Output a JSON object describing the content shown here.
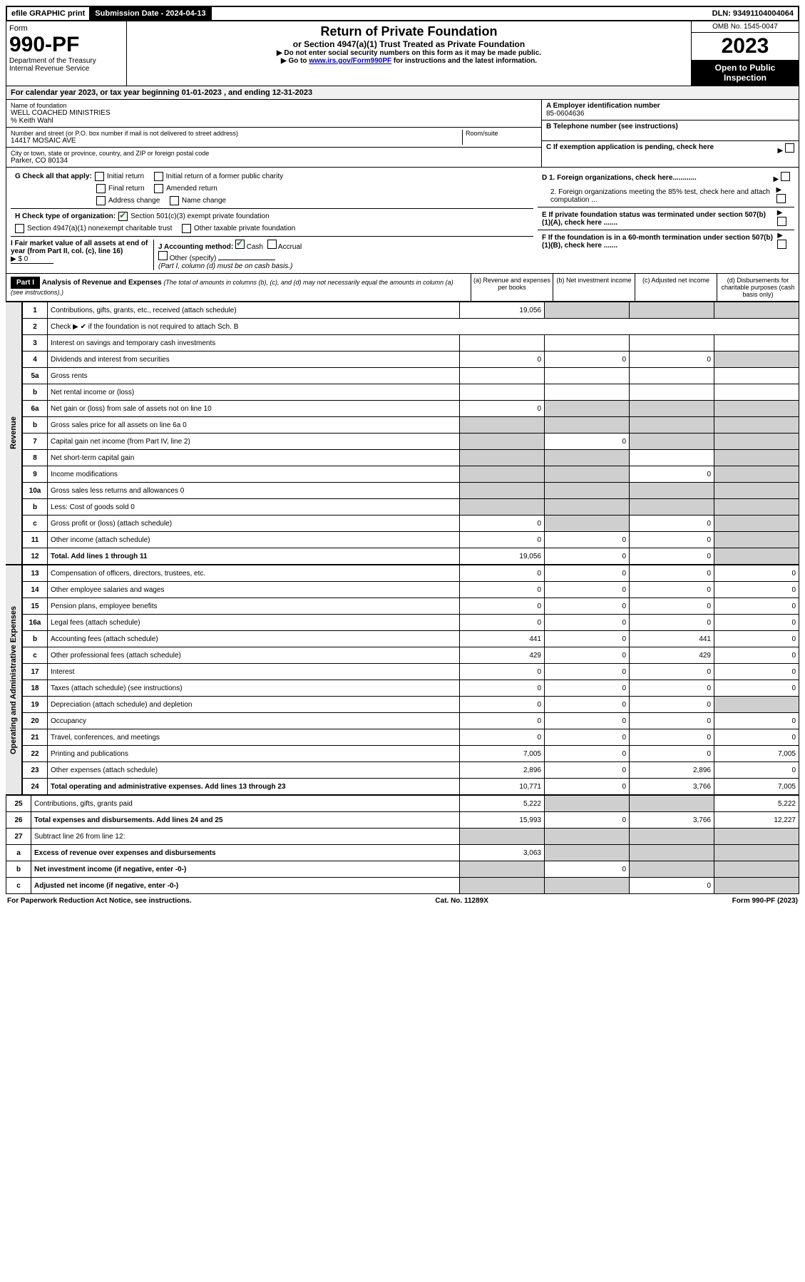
{
  "colors": {
    "black": "#000000",
    "white": "#ffffff",
    "shade": "#cfcfcf",
    "headerShade": "#f0f0f0",
    "link": "#0000cc",
    "check": "#2a7a2a"
  },
  "top": {
    "efile": "efile GRAPHIC print",
    "submission_label": "Submission Date - 2024-04-13",
    "dln": "DLN: 93491104004064"
  },
  "header": {
    "form_word": "Form",
    "form_number": "990-PF",
    "dept": "Department of the Treasury",
    "irs": "Internal Revenue Service",
    "title": "Return of Private Foundation",
    "subtitle": "or Section 4947(a)(1) Trust Treated as Private Foundation",
    "instr1": "▶ Do not enter social security numbers on this form as it may be made public.",
    "instr2_pre": "▶ Go to ",
    "instr2_link": "www.irs.gov/Form990PF",
    "instr2_post": " for instructions and the latest information.",
    "omb": "OMB No. 1545-0047",
    "year": "2023",
    "open": "Open to Public Inspection"
  },
  "calyear": "For calendar year 2023, or tax year beginning 01-01-2023 , and ending 12-31-2023",
  "org": {
    "name_label": "Name of foundation",
    "name": "WELL COACHED MINISTRIES",
    "care_of": "% Keith Wahl",
    "street_label": "Number and street (or P.O. box number if mail is not delivered to street address)",
    "street": "14417 MOSAIC AVE",
    "room_label": "Room/suite",
    "city_label": "City or town, state or province, country, and ZIP or foreign postal code",
    "city": "Parker, CO  80134"
  },
  "right_info": {
    "A_label": "A Employer identification number",
    "A_val": "85-0604636",
    "B_label": "B Telephone number (see instructions)",
    "C_label": "C If exemption application is pending, check here",
    "D1": "D 1. Foreign organizations, check here............",
    "D2": "2. Foreign organizations meeting the 85% test, check here and attach computation ...",
    "E": "E  If private foundation status was terminated under section 507(b)(1)(A), check here .......",
    "F": "F  If the foundation is in a 60-month termination under section 507(b)(1)(B), check here .......",
    "G_label": "G Check all that apply:",
    "G_opts": [
      "Initial return",
      "Initial return of a former public charity",
      "Final return",
      "Amended return",
      "Address change",
      "Name change"
    ],
    "H_label": "H Check type of organization:",
    "H_1": "Section 501(c)(3) exempt private foundation",
    "H_2": "Section 4947(a)(1) nonexempt charitable trust",
    "H_3": "Other taxable private foundation",
    "I_label": "I Fair market value of all assets at end of year (from Part II, col. (c), line 16)",
    "I_val": "▶ $  0",
    "J_label": "J Accounting method:",
    "J_cash": "Cash",
    "J_accrual": "Accrual",
    "J_other": "Other (specify)",
    "J_note": "(Part I, column (d) must be on cash basis.)"
  },
  "part1": {
    "tab": "Part I",
    "title": "Analysis of Revenue and Expenses",
    "note": "(The total of amounts in columns (b), (c), and (d) may not necessarily equal the amounts in column (a) (see instructions).)",
    "col_a": "(a)  Revenue and expenses per books",
    "col_b": "(b)  Net investment income",
    "col_c": "(c)  Adjusted net income",
    "col_d": "(d)  Disbursements for charitable purposes (cash basis only)"
  },
  "sections": {
    "revenue": "Revenue",
    "opex": "Operating and Administrative Expenses"
  },
  "rows": [
    {
      "n": "1",
      "d": "Contributions, gifts, grants, etc., received (attach schedule)",
      "a": "19,056",
      "b_s": true,
      "c_s": true,
      "d_s": true,
      "sec": "rev"
    },
    {
      "n": "2",
      "d": "Check ▶ ✔ if the foundation is not required to attach Sch. B",
      "no_cols": true,
      "sec": "rev"
    },
    {
      "n": "3",
      "d": "Interest on savings and temporary cash investments",
      "sec": "rev"
    },
    {
      "n": "4",
      "d": "Dividends and interest from securities",
      "a": "0",
      "b": "0",
      "c": "0",
      "d_s": true,
      "sec": "rev"
    },
    {
      "n": "5a",
      "d": "Gross rents",
      "sec": "rev"
    },
    {
      "n": "b",
      "d": "Net rental income or (loss)",
      "inline_blank": true,
      "sec": "rev"
    },
    {
      "n": "6a",
      "d": "Net gain or (loss) from sale of assets not on line 10",
      "a": "0",
      "b_s": true,
      "c_s": true,
      "d_s": true,
      "sec": "rev"
    },
    {
      "n": "b",
      "d": "Gross sales price for all assets on line 6a",
      "inline_val": "0",
      "all_s": true,
      "sec": "rev"
    },
    {
      "n": "7",
      "d": "Capital gain net income (from Part IV, line 2)",
      "a_s": true,
      "b": "0",
      "c_s": true,
      "d_s": true,
      "sec": "rev"
    },
    {
      "n": "8",
      "d": "Net short-term capital gain",
      "a_s": true,
      "b_s": true,
      "d_s": true,
      "sec": "rev"
    },
    {
      "n": "9",
      "d": "Income modifications",
      "a_s": true,
      "b_s": true,
      "c": "0",
      "d_s": true,
      "sec": "rev"
    },
    {
      "n": "10a",
      "d": "Gross sales less returns and allowances",
      "inline_val": "0",
      "all_s": true,
      "sec": "rev"
    },
    {
      "n": "b",
      "d": "Less: Cost of goods sold",
      "inline_val": "0",
      "all_s": true,
      "sec": "rev"
    },
    {
      "n": "c",
      "d": "Gross profit or (loss) (attach schedule)",
      "a": "0",
      "b_s": true,
      "c": "0",
      "d_s": true,
      "sec": "rev"
    },
    {
      "n": "11",
      "d": "Other income (attach schedule)",
      "a": "0",
      "b": "0",
      "c": "0",
      "d_s": true,
      "sec": "rev"
    },
    {
      "n": "12",
      "d": "Total. Add lines 1 through 11",
      "a": "19,056",
      "b": "0",
      "c": "0",
      "d_s": true,
      "bold": true,
      "sec": "rev"
    },
    {
      "n": "13",
      "d": "Compensation of officers, directors, trustees, etc.",
      "a": "0",
      "b": "0",
      "c": "0",
      "dd": "0",
      "sec": "op"
    },
    {
      "n": "14",
      "d": "Other employee salaries and wages",
      "a": "0",
      "b": "0",
      "c": "0",
      "dd": "0",
      "sec": "op"
    },
    {
      "n": "15",
      "d": "Pension plans, employee benefits",
      "a": "0",
      "b": "0",
      "c": "0",
      "dd": "0",
      "sec": "op"
    },
    {
      "n": "16a",
      "d": "Legal fees (attach schedule)",
      "a": "0",
      "b": "0",
      "c": "0",
      "dd": "0",
      "sec": "op"
    },
    {
      "n": "b",
      "d": "Accounting fees (attach schedule)",
      "a": "441",
      "b": "0",
      "c": "441",
      "dd": "0",
      "sec": "op"
    },
    {
      "n": "c",
      "d": "Other professional fees (attach schedule)",
      "a": "429",
      "b": "0",
      "c": "429",
      "dd": "0",
      "sec": "op"
    },
    {
      "n": "17",
      "d": "Interest",
      "a": "0",
      "b": "0",
      "c": "0",
      "dd": "0",
      "sec": "op"
    },
    {
      "n": "18",
      "d": "Taxes (attach schedule) (see instructions)",
      "a": "0",
      "b": "0",
      "c": "0",
      "dd": "0",
      "sec": "op"
    },
    {
      "n": "19",
      "d": "Depreciation (attach schedule) and depletion",
      "a": "0",
      "b": "0",
      "c": "0",
      "d_s": true,
      "sec": "op"
    },
    {
      "n": "20",
      "d": "Occupancy",
      "a": "0",
      "b": "0",
      "c": "0",
      "dd": "0",
      "sec": "op"
    },
    {
      "n": "21",
      "d": "Travel, conferences, and meetings",
      "a": "0",
      "b": "0",
      "c": "0",
      "dd": "0",
      "sec": "op"
    },
    {
      "n": "22",
      "d": "Printing and publications",
      "a": "7,005",
      "b": "0",
      "c": "0",
      "dd": "7,005",
      "sec": "op"
    },
    {
      "n": "23",
      "d": "Other expenses (attach schedule)",
      "icon": true,
      "a": "2,896",
      "b": "0",
      "c": "2,896",
      "dd": "0",
      "sec": "op"
    },
    {
      "n": "24",
      "d": "Total operating and administrative expenses. Add lines 13 through 23",
      "a": "10,771",
      "b": "0",
      "c": "3,766",
      "dd": "7,005",
      "bold": true,
      "sec": "op"
    },
    {
      "n": "25",
      "d": "Contributions, gifts, grants paid",
      "a": "5,222",
      "b_s": true,
      "c_s": true,
      "dd": "5,222",
      "sec": "none"
    },
    {
      "n": "26",
      "d": "Total expenses and disbursements. Add lines 24 and 25",
      "a": "15,993",
      "b": "0",
      "c": "3,766",
      "dd": "12,227",
      "bold": true,
      "sec": "none"
    },
    {
      "n": "27",
      "d": "Subtract line 26 from line 12:",
      "all_s": true,
      "sec": "none"
    },
    {
      "n": "a",
      "d": "Excess of revenue over expenses and disbursements",
      "a": "3,063",
      "b_s": true,
      "c_s": true,
      "d_s": true,
      "bold": true,
      "sec": "none"
    },
    {
      "n": "b",
      "d": "Net investment income (if negative, enter -0-)",
      "a_s": true,
      "b": "0",
      "c_s": true,
      "d_s": true,
      "bold": true,
      "sec": "none"
    },
    {
      "n": "c",
      "d": "Adjusted net income (if negative, enter -0-)",
      "a_s": true,
      "b_s": true,
      "c": "0",
      "d_s": true,
      "bold": true,
      "sec": "none"
    }
  ],
  "footer": {
    "left": "For Paperwork Reduction Act Notice, see instructions.",
    "mid": "Cat. No. 11289X",
    "right": "Form 990-PF (2023)"
  }
}
